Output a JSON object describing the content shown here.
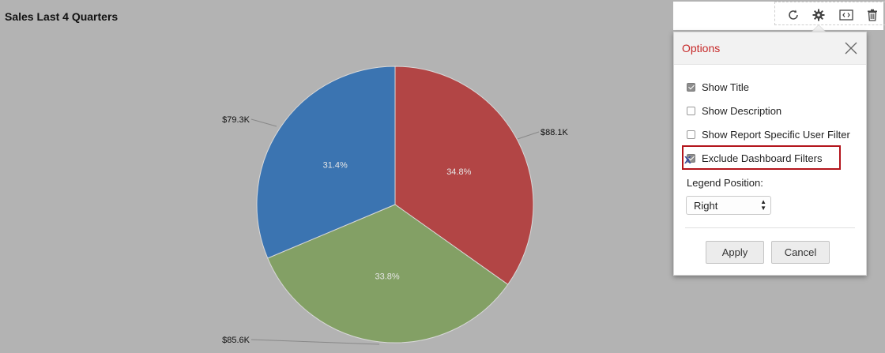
{
  "chart_title": "Sales Last 4 Quarters",
  "chart_data": {
    "type": "pie",
    "title": "Sales Last 4 Quarters",
    "slices": [
      {
        "value_label": "$88.1K",
        "value": 88.1,
        "percent_label": "34.8%",
        "percent": 34.8,
        "color": "#b24545"
      },
      {
        "value_label": "$85.6K",
        "value": 85.6,
        "percent_label": "33.8%",
        "percent": 33.8,
        "color": "#83a065"
      },
      {
        "value_label": "$79.3K",
        "value": 79.3,
        "percent_label": "31.4%",
        "percent": 31.4,
        "color": "#3b74b1"
      }
    ],
    "legend": "none"
  },
  "toolbar": {
    "icons": [
      "refresh-icon",
      "gear-icon",
      "embed-icon",
      "trash-icon"
    ]
  },
  "options_panel": {
    "title": "Options",
    "checkboxes": [
      {
        "label": "Show Title",
        "checked": true
      },
      {
        "label": "Show Description",
        "checked": false
      },
      {
        "label": "Show Report Specific User Filter",
        "checked": false
      },
      {
        "label": "Exclude Dashboard Filters",
        "checked": true
      }
    ],
    "legend_position_label": "Legend Position:",
    "legend_position_value": "Right",
    "apply_label": "Apply",
    "cancel_label": "Cancel",
    "colors": {
      "title": "#c62828",
      "highlight": "#b3141b"
    }
  }
}
